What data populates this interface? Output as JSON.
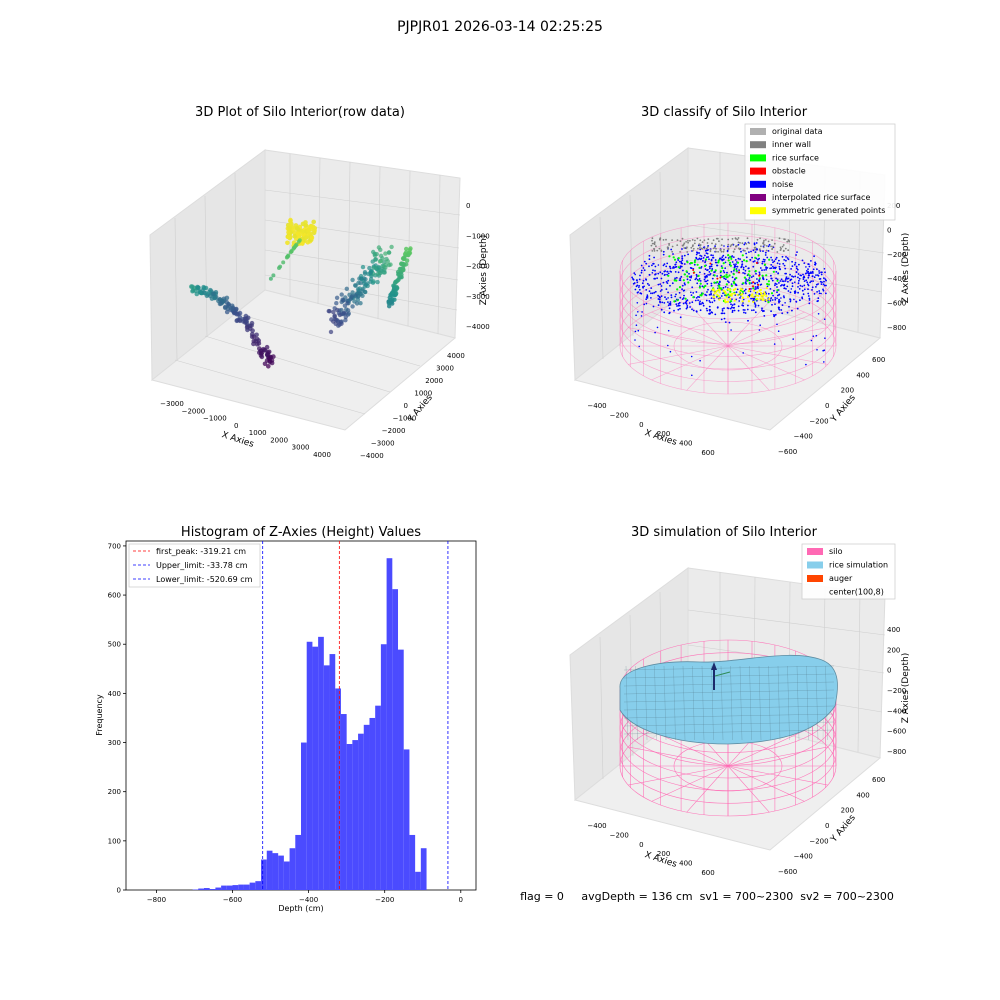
{
  "figure": {
    "suptitle": "PJPJR01 2026-03-14 02:25:25",
    "status_line": "flag = 0     avgDepth = 136 cm  sv1 = 700~2300  sv2 = 700~2300"
  },
  "colors": {
    "hist_bar": "#4b4bff",
    "first_peak_line": "#ff0000",
    "limit_lines": "#0000ff",
    "silo_wire": "#ff69b4",
    "rice_surface": "#87ceeb",
    "auger": "#ff4500",
    "noise": "#0000ff",
    "rice_surface_points": "#00ff00",
    "original_data": "#b0b0b0",
    "inner_wall": "#808080",
    "obstacle": "#ff0000",
    "interpolated_rice_surface": "#800080",
    "symmetric_generated_points": "#ffff00"
  },
  "chart_data": [
    {
      "type": "scatter",
      "projection": "3d",
      "title": "3D Plot of Silo Interior(row data)",
      "xlabel": "X Axies",
      "ylabel": "Y Axies",
      "zlabel": "Z Axies (Depth)",
      "x_ticks": [
        "−3000",
        "−2000",
        "−1000",
        "0",
        "1000",
        "2000",
        "3000",
        "4000"
      ],
      "y_ticks": [
        "4000",
        "3000",
        "2000",
        "1000",
        "0",
        "−1000",
        "−2000",
        "−3000",
        "−4000"
      ],
      "z_ticks": [
        "0",
        "−1000",
        "−2000",
        "−3000",
        "−4000"
      ],
      "colormap": "viridis (by depth)"
    },
    {
      "type": "scatter",
      "projection": "3d",
      "title": "3D classify of Silo Interior",
      "xlabel": "X Axies",
      "ylabel": "Y Axies",
      "zlabel": "Z Axies (Depth)",
      "x_ticks": [
        "−400",
        "−200",
        "0",
        "200",
        "400",
        "600"
      ],
      "y_ticks": [
        "600",
        "400",
        "200",
        "0",
        "−200",
        "−400",
        "−600"
      ],
      "z_ticks": [
        "200",
        "0",
        "−200",
        "−400",
        "−600",
        "−800"
      ],
      "legend": [
        {
          "name": "original data",
          "color": "#b0b0b0"
        },
        {
          "name": "inner wall",
          "color": "#808080"
        },
        {
          "name": "rice surface",
          "color": "#00ff00"
        },
        {
          "name": "obstacle",
          "color": "#ff0000"
        },
        {
          "name": "noise",
          "color": "#0000ff"
        },
        {
          "name": "interpolated rice surface",
          "color": "#800080"
        },
        {
          "name": "symmetric generated points",
          "color": "#ffff00"
        }
      ],
      "legend_position": "top-right"
    },
    {
      "type": "bar",
      "title": "Histogram of Z-Axies (Height) Values",
      "xlabel": "Depth (cm)",
      "ylabel": "Frequency",
      "xlim": [
        -880,
        40
      ],
      "ylim": [
        0,
        710
      ],
      "x_ticks": [
        -800,
        -600,
        -400,
        -200,
        0
      ],
      "y_ticks": [
        0,
        100,
        200,
        300,
        400,
        500,
        600,
        700
      ],
      "x_tick_labels": [
        "−800",
        "−600",
        "−400",
        "−200",
        "0"
      ],
      "y_tick_labels": [
        "0",
        "100",
        "200",
        "300",
        "400",
        "500",
        "600",
        "700"
      ],
      "bin_width": 15,
      "bins_start": [
        -705,
        -690,
        -675,
        -660,
        -645,
        -630,
        -615,
        -600,
        -585,
        -570,
        -555,
        -540,
        -525,
        -510,
        -495,
        -480,
        -465,
        -450,
        -435,
        -420,
        -405,
        -390,
        -375,
        -360,
        -345,
        -330,
        -315,
        -300,
        -285,
        -270,
        -255,
        -240,
        -225,
        -210,
        -195,
        -180,
        -165,
        -150,
        -135,
        -120,
        -105,
        -90,
        -75,
        -60,
        -45,
        -30,
        -15
      ],
      "values": [
        1,
        3,
        4,
        2,
        5,
        9,
        9,
        10,
        11,
        11,
        15,
        18,
        62,
        80,
        75,
        70,
        58,
        85,
        112,
        300,
        505,
        495,
        515,
        457,
        480,
        410,
        358,
        297,
        305,
        318,
        336,
        350,
        375,
        500,
        675,
        612,
        489,
        286,
        112,
        37,
        85,
        0,
        0,
        0,
        0,
        0,
        0
      ],
      "vlines": [
        {
          "name": "first_peak",
          "x": -319.21,
          "label": "first_peak: -319.21 cm",
          "color": "#ff0000"
        },
        {
          "name": "Upper_limit",
          "x": -33.78,
          "label": "Upper_limit: -33.78 cm",
          "color": "#0000ff"
        },
        {
          "name": "Lower_limit",
          "x": -520.69,
          "label": "Lower_limit: -520.69 cm",
          "color": "#0000ff"
        }
      ],
      "legend_position": "top-left"
    },
    {
      "type": "surface",
      "projection": "3d",
      "title": "3D simulation of Silo Interior",
      "xlabel": "X Axies",
      "ylabel": "Y Axies",
      "zlabel": "Z Axies (Depth)",
      "x_ticks": [
        "−400",
        "−200",
        "0",
        "200",
        "400",
        "600"
      ],
      "y_ticks": [
        "600",
        "400",
        "200",
        "0",
        "−200",
        "−400",
        "−600"
      ],
      "z_ticks": [
        "400",
        "200",
        "0",
        "−200",
        "−400",
        "−600",
        "−800"
      ],
      "legend": [
        {
          "name": "silo",
          "color": "#ff69b4"
        },
        {
          "name": "rice simulation",
          "color": "#87ceeb"
        },
        {
          "name": "auger",
          "color": "#ff4500"
        },
        {
          "name": "center(100,8)",
          "color": ""
        }
      ],
      "legend_position": "top-right"
    }
  ]
}
